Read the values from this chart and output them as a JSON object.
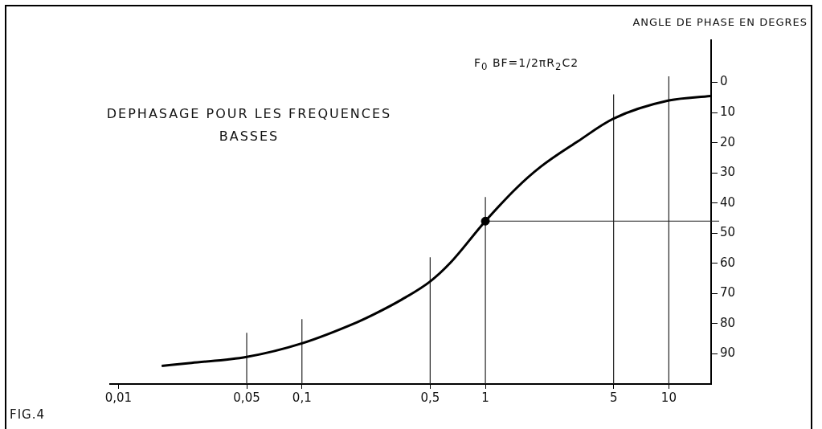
{
  "chart_data": {
    "type": "line",
    "title": "DEPHASAGE POUR LES FREQUENCES\nBASSES",
    "ylabel": "ANGLE DE PHASE EN DEGRES",
    "annotations": [
      "F$_{0}$ BF=1/2πR$_{2}$C2",
      "FIG.4"
    ],
    "log": "x",
    "grid": false,
    "legend": false,
    "marker": "none",
    "line_style": "solid",
    "xlim": [
      0.009,
      17
    ],
    "xticks": [
      {
        "value": 0.01,
        "label": "0,01"
      },
      {
        "value": 0.05,
        "label": "0,05"
      },
      {
        "value": 0.1,
        "label": "0,1"
      },
      {
        "value": 0.5,
        "label": "0,5"
      },
      {
        "value": 1,
        "label": "1"
      },
      {
        "value": 5,
        "label": "5"
      },
      {
        "value": 10,
        "label": "10"
      }
    ],
    "ylim": [
      100,
      -14
    ],
    "yticks": [
      0,
      10,
      20,
      30,
      40,
      50,
      60,
      70,
      80,
      90
    ],
    "ref_lines": [
      {
        "axis": "x",
        "value": 0.05
      },
      {
        "axis": "x",
        "value": 0.1
      },
      {
        "axis": "x",
        "value": 0.5
      },
      {
        "axis": "x",
        "value": 1
      },
      {
        "axis": "x",
        "value": 5
      },
      {
        "axis": "x",
        "value": 10
      },
      {
        "axis": "y",
        "value": 46
      }
    ],
    "series": [
      {
        "color": "#000000",
        "x": [
          0.0172,
          0.025,
          0.05,
          0.1,
          0.2,
          0.245,
          0.35,
          0.5,
          0.64,
          1,
          1.48,
          2,
          3.2,
          5,
          10,
          16.9
        ],
        "values": [
          94,
          93,
          91,
          86.5,
          79.5,
          77,
          72,
          66,
          60,
          46,
          35,
          28,
          19.5,
          12,
          6,
          4.5
        ]
      },
      {
        "type": "scatter",
        "marker": "circle",
        "color": "#000000",
        "x": [
          1
        ],
        "values": [
          46
        ]
      }
    ]
  }
}
